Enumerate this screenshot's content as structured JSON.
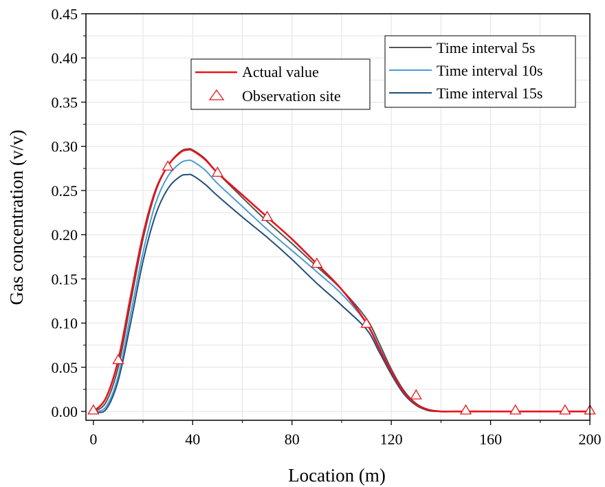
{
  "chart_data": {
    "type": "line",
    "xlabel": "Location (m)",
    "ylabel": "Gas concentration (v/v)",
    "xlim": [
      -3,
      200
    ],
    "ylim": [
      -0.01,
      0.45
    ],
    "x_ticks": [
      0,
      40,
      80,
      120,
      160,
      200
    ],
    "y_ticks": [
      0.0,
      0.05,
      0.1,
      0.15,
      0.2,
      0.25,
      0.3,
      0.35,
      0.4,
      0.45
    ],
    "x_tick_labels": [
      "0",
      "40",
      "80",
      "120",
      "160",
      "200"
    ],
    "y_tick_labels": [
      "0.00",
      "0.05",
      "0.10",
      "0.15",
      "0.20",
      "0.25",
      "0.30",
      "0.35",
      "0.40",
      "0.45"
    ],
    "grid": true,
    "series": [
      {
        "name": "Actual value",
        "color": "#e8141c",
        "x": [
          0,
          5,
          10,
          15,
          20,
          25,
          30,
          35,
          38,
          40,
          45,
          50,
          60,
          70,
          80,
          90,
          100,
          110,
          115,
          120,
          125,
          130,
          135,
          140,
          145,
          150,
          160,
          170,
          180,
          190,
          200
        ],
        "y": [
          0.0,
          0.015,
          0.058,
          0.13,
          0.2,
          0.25,
          0.278,
          0.293,
          0.296,
          0.295,
          0.285,
          0.27,
          0.245,
          0.22,
          0.195,
          0.167,
          0.138,
          0.1,
          0.072,
          0.045,
          0.022,
          0.008,
          0.002,
          0.0,
          0.0,
          0.0,
          0.0,
          0.0,
          0.0,
          0.0,
          0.0
        ]
      },
      {
        "name": "Time interval 5s",
        "color": "#555555",
        "x": [
          0,
          5,
          10,
          15,
          20,
          25,
          30,
          35,
          38,
          40,
          45,
          50,
          60,
          70,
          80,
          90,
          100,
          110,
          115,
          120,
          125,
          130,
          135,
          140,
          145,
          150,
          160,
          170,
          180,
          190,
          200
        ],
        "y": [
          0.0,
          0.01,
          0.05,
          0.123,
          0.195,
          0.248,
          0.278,
          0.294,
          0.297,
          0.296,
          0.286,
          0.27,
          0.242,
          0.215,
          0.19,
          0.164,
          0.138,
          0.105,
          0.078,
          0.048,
          0.024,
          0.009,
          0.002,
          0.0,
          0.0,
          0.0,
          0.0,
          0.0,
          0.0,
          0.0,
          0.0
        ]
      },
      {
        "name": "Time interval 10s",
        "color": "#4a9cd0",
        "x": [
          0,
          5,
          10,
          15,
          20,
          25,
          30,
          35,
          38,
          40,
          45,
          50,
          60,
          70,
          80,
          90,
          100,
          110,
          115,
          120,
          125,
          130,
          135,
          140,
          145,
          150,
          160,
          170,
          180,
          190,
          200
        ],
        "y": [
          0.0,
          0.005,
          0.04,
          0.11,
          0.18,
          0.235,
          0.266,
          0.281,
          0.284,
          0.283,
          0.273,
          0.258,
          0.232,
          0.206,
          0.182,
          0.158,
          0.133,
          0.1,
          0.074,
          0.045,
          0.022,
          0.008,
          0.002,
          0.0,
          0.0,
          0.0,
          0.0,
          0.0,
          0.0,
          0.0,
          0.0
        ]
      },
      {
        "name": "Time interval 15s",
        "color": "#1f4e79",
        "x": [
          0,
          5,
          10,
          15,
          20,
          25,
          30,
          35,
          38,
          40,
          45,
          50,
          60,
          70,
          80,
          90,
          100,
          110,
          115,
          120,
          125,
          130,
          135,
          140,
          145,
          150,
          160,
          170,
          180,
          190,
          200
        ],
        "y": [
          0.0,
          0.002,
          0.035,
          0.1,
          0.17,
          0.222,
          0.252,
          0.266,
          0.268,
          0.267,
          0.257,
          0.244,
          0.22,
          0.197,
          0.172,
          0.145,
          0.12,
          0.093,
          0.068,
          0.042,
          0.02,
          0.007,
          0.001,
          0.0,
          0.0,
          0.0,
          0.0,
          0.0,
          0.0,
          0.0,
          0.0
        ]
      }
    ],
    "markers": {
      "name": "Observation site",
      "color": "#e8141c",
      "x": [
        0,
        10,
        30,
        50,
        70,
        90,
        110,
        130,
        150,
        170,
        190,
        200
      ],
      "y": [
        0.001,
        0.058,
        0.277,
        0.27,
        0.22,
        0.167,
        0.099,
        0.018,
        0.001,
        0.001,
        0.001,
        0.001
      ]
    },
    "legends": [
      {
        "placement": "top-center",
        "items": [
          "Actual value",
          "Observation site"
        ]
      },
      {
        "placement": "top-right",
        "items": [
          "Time interval 5s",
          "Time interval 10s",
          "Time interval 15s"
        ]
      }
    ]
  }
}
